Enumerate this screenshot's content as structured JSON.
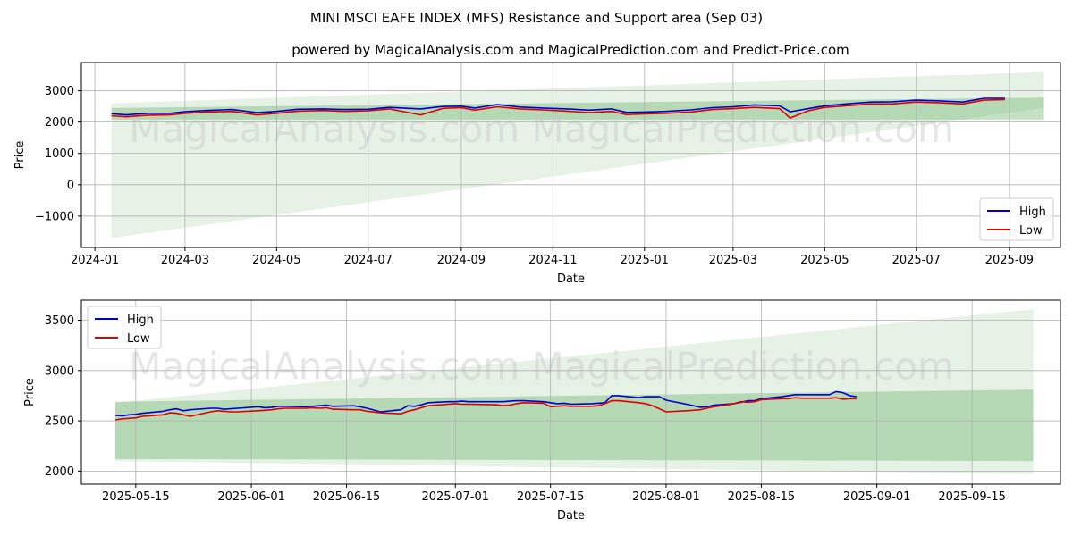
{
  "title": "MINI MSCI EAFE INDEX (MFS) Resistance and Support area (Sep 03)",
  "subtitle": "powered by MagicalAnalysis.com and MagicalPrediction.com and Predict-Price.com",
  "watermark": "MagicalAnalysis.com    MagicalPrediction.com",
  "colors": {
    "high": "#0000cc",
    "low": "#dd0000",
    "band": "#5aaa5a",
    "grid": "#b0b0b0"
  },
  "chart_data": [
    {
      "type": "line",
      "xlabel": "Date",
      "ylabel": "Price",
      "xlim": [
        "2023-12-23",
        "2025-10-05"
      ],
      "ylim": [
        -2000,
        3900
      ],
      "x_ticks": [
        "2024-01-01",
        "2024-03-01",
        "2024-05-01",
        "2024-07-01",
        "2024-09-01",
        "2024-11-01",
        "2025-01-01",
        "2025-03-01",
        "2025-05-01",
        "2025-07-01",
        "2025-09-01"
      ],
      "x_tick_labels": [
        "2024-01",
        "2024-03",
        "2024-05",
        "2024-07",
        "2024-09",
        "2024-11",
        "2025-01",
        "2025-03",
        "2025-05",
        "2025-07",
        "2025-09"
      ],
      "y_ticks": [
        -1000,
        0,
        1000,
        2000,
        3000
      ],
      "y_tick_labels": [
        "−1000",
        "0",
        "1000",
        "2000",
        "3000"
      ],
      "legend": {
        "position": "lower-right",
        "entries": [
          "High",
          "Low"
        ]
      },
      "grid": true,
      "bands": [
        {
          "x": [
            "2024-01-12",
            "2025-09-24"
          ],
          "upper": [
            2600,
            3600
          ],
          "lower": [
            -1700,
            2450
          ],
          "opacity": 0.15
        },
        {
          "x": [
            "2024-01-12",
            "2025-09-24"
          ],
          "upper": [
            2450,
            2780
          ],
          "lower": [
            2080,
            2080
          ],
          "opacity": 0.35
        }
      ],
      "series": [
        {
          "name": "High",
          "x": [
            "2024-01-12",
            "2024-01-22",
            "2024-02-05",
            "2024-02-20",
            "2024-03-01",
            "2024-03-15",
            "2024-04-01",
            "2024-04-18",
            "2024-05-01",
            "2024-05-15",
            "2024-06-01",
            "2024-06-15",
            "2024-07-01",
            "2024-07-15",
            "2024-08-05",
            "2024-08-20",
            "2024-09-01",
            "2024-09-10",
            "2024-09-25",
            "2024-10-10",
            "2024-10-25",
            "2024-11-10",
            "2024-11-25",
            "2024-12-10",
            "2024-12-20",
            "2025-01-01",
            "2025-01-15",
            "2025-02-01",
            "2025-02-15",
            "2025-03-01",
            "2025-03-15",
            "2025-04-01",
            "2025-04-08",
            "2025-04-20",
            "2025-05-01",
            "2025-05-15",
            "2025-06-01",
            "2025-06-15",
            "2025-07-01",
            "2025-07-15",
            "2025-08-01",
            "2025-08-15",
            "2025-08-29"
          ],
          "values": [
            2270,
            2230,
            2280,
            2280,
            2330,
            2370,
            2400,
            2300,
            2340,
            2410,
            2420,
            2400,
            2410,
            2470,
            2420,
            2500,
            2510,
            2450,
            2560,
            2480,
            2450,
            2420,
            2380,
            2420,
            2310,
            2320,
            2340,
            2390,
            2460,
            2490,
            2550,
            2520,
            2330,
            2430,
            2520,
            2580,
            2640,
            2650,
            2700,
            2680,
            2640,
            2760,
            2760
          ]
        },
        {
          "name": "Low",
          "x": [
            "2024-01-12",
            "2024-01-22",
            "2024-02-05",
            "2024-02-20",
            "2024-03-01",
            "2024-03-15",
            "2024-04-01",
            "2024-04-18",
            "2024-05-01",
            "2024-05-15",
            "2024-06-01",
            "2024-06-15",
            "2024-07-01",
            "2024-07-15",
            "2024-08-05",
            "2024-08-20",
            "2024-09-01",
            "2024-09-10",
            "2024-09-25",
            "2024-10-10",
            "2024-10-25",
            "2024-11-10",
            "2024-11-25",
            "2024-12-10",
            "2024-12-20",
            "2025-01-01",
            "2025-01-15",
            "2025-02-01",
            "2025-02-15",
            "2025-03-01",
            "2025-03-15",
            "2025-04-01",
            "2025-04-08",
            "2025-04-20",
            "2025-05-01",
            "2025-05-15",
            "2025-06-01",
            "2025-06-15",
            "2025-07-01",
            "2025-07-15",
            "2025-08-01",
            "2025-08-15",
            "2025-08-29"
          ],
          "values": [
            2200,
            2170,
            2220,
            2230,
            2280,
            2320,
            2340,
            2230,
            2280,
            2350,
            2370,
            2340,
            2360,
            2420,
            2230,
            2440,
            2460,
            2380,
            2490,
            2420,
            2390,
            2350,
            2300,
            2340,
            2240,
            2260,
            2280,
            2320,
            2400,
            2430,
            2470,
            2430,
            2130,
            2360,
            2470,
            2520,
            2580,
            2580,
            2640,
            2620,
            2580,
            2700,
            2720
          ]
        }
      ]
    },
    {
      "type": "line",
      "xlabel": "Date",
      "ylabel": "Price",
      "xlim": [
        "2025-05-07",
        "2025-09-28"
      ],
      "ylim": [
        1870,
        3700
      ],
      "x_ticks": [
        "2025-05-15",
        "2025-06-01",
        "2025-06-15",
        "2025-07-01",
        "2025-07-15",
        "2025-08-01",
        "2025-08-15",
        "2025-09-01",
        "2025-09-15"
      ],
      "x_tick_labels": [
        "2025-05-15",
        "2025-06-01",
        "2025-06-15",
        "2025-07-01",
        "2025-07-15",
        "2025-08-01",
        "2025-08-15",
        "2025-09-01",
        "2025-09-15"
      ],
      "y_ticks": [
        2000,
        2500,
        3000,
        3500
      ],
      "y_tick_labels": [
        "2000",
        "2500",
        "3000",
        "3500"
      ],
      "legend": {
        "position": "upper-left",
        "entries": [
          "High",
          "Low"
        ]
      },
      "grid": true,
      "bands": [
        {
          "x": [
            "2025-05-12",
            "2025-09-24"
          ],
          "upper": [
            2680,
            3610
          ],
          "lower": [
            2100,
            1970
          ],
          "opacity": 0.15
        },
        {
          "x": [
            "2025-05-12",
            "2025-09-24"
          ],
          "upper": [
            2690,
            2810
          ],
          "lower": [
            2120,
            2100
          ],
          "opacity": 0.35
        }
      ],
      "series": [
        {
          "name": "High",
          "x": [
            "2025-05-12",
            "2025-05-13",
            "2025-05-14",
            "2025-05-15",
            "2025-05-16",
            "2025-05-19",
            "2025-05-20",
            "2025-05-21",
            "2025-05-22",
            "2025-05-23",
            "2025-05-26",
            "2025-05-27",
            "2025-05-28",
            "2025-05-29",
            "2025-05-30",
            "2025-06-02",
            "2025-06-03",
            "2025-06-04",
            "2025-06-05",
            "2025-06-06",
            "2025-06-09",
            "2025-06-10",
            "2025-06-11",
            "2025-06-12",
            "2025-06-13",
            "2025-06-16",
            "2025-06-17",
            "2025-06-18",
            "2025-06-20",
            "2025-06-23",
            "2025-06-24",
            "2025-06-25",
            "2025-06-26",
            "2025-06-27",
            "2025-06-30",
            "2025-07-01",
            "2025-07-02",
            "2025-07-03",
            "2025-07-07",
            "2025-07-08",
            "2025-07-09",
            "2025-07-10",
            "2025-07-11",
            "2025-07-14",
            "2025-07-15",
            "2025-07-16",
            "2025-07-17",
            "2025-07-18",
            "2025-07-21",
            "2025-07-22",
            "2025-07-23",
            "2025-07-24",
            "2025-07-25",
            "2025-07-28",
            "2025-07-29",
            "2025-07-30",
            "2025-07-31",
            "2025-08-01",
            "2025-08-04",
            "2025-08-05",
            "2025-08-06",
            "2025-08-07",
            "2025-08-08",
            "2025-08-11",
            "2025-08-12",
            "2025-08-13",
            "2025-08-14",
            "2025-08-15",
            "2025-08-18",
            "2025-08-19",
            "2025-08-20",
            "2025-08-21",
            "2025-08-22",
            "2025-08-25",
            "2025-08-26",
            "2025-08-27",
            "2025-08-28",
            "2025-08-29"
          ],
          "values": [
            2555,
            2550,
            2560,
            2565,
            2575,
            2595,
            2610,
            2620,
            2600,
            2610,
            2625,
            2625,
            2615,
            2620,
            2625,
            2640,
            2630,
            2635,
            2645,
            2645,
            2640,
            2645,
            2650,
            2655,
            2645,
            2650,
            2640,
            2625,
            2590,
            2610,
            2650,
            2645,
            2660,
            2680,
            2690,
            2690,
            2695,
            2690,
            2690,
            2690,
            2695,
            2700,
            2700,
            2690,
            2680,
            2670,
            2675,
            2665,
            2670,
            2675,
            2680,
            2750,
            2750,
            2730,
            2740,
            2740,
            2740,
            2705,
            2665,
            2650,
            2635,
            2640,
            2655,
            2670,
            2685,
            2700,
            2700,
            2720,
            2740,
            2750,
            2760,
            2760,
            2760,
            2760,
            2790,
            2780,
            2750,
            2740
          ]
        },
        {
          "name": "Low",
          "x": [
            "2025-05-12",
            "2025-05-13",
            "2025-05-14",
            "2025-05-15",
            "2025-05-16",
            "2025-05-19",
            "2025-05-20",
            "2025-05-21",
            "2025-05-22",
            "2025-05-23",
            "2025-05-26",
            "2025-05-27",
            "2025-05-28",
            "2025-05-29",
            "2025-05-30",
            "2025-06-02",
            "2025-06-03",
            "2025-06-04",
            "2025-06-05",
            "2025-06-06",
            "2025-06-09",
            "2025-06-10",
            "2025-06-11",
            "2025-06-12",
            "2025-06-13",
            "2025-06-16",
            "2025-06-17",
            "2025-06-18",
            "2025-06-20",
            "2025-06-23",
            "2025-06-24",
            "2025-06-25",
            "2025-06-26",
            "2025-06-27",
            "2025-06-30",
            "2025-07-01",
            "2025-07-02",
            "2025-07-03",
            "2025-07-07",
            "2025-07-08",
            "2025-07-09",
            "2025-07-10",
            "2025-07-11",
            "2025-07-14",
            "2025-07-15",
            "2025-07-16",
            "2025-07-17",
            "2025-07-18",
            "2025-07-21",
            "2025-07-22",
            "2025-07-23",
            "2025-07-24",
            "2025-07-25",
            "2025-07-28",
            "2025-07-29",
            "2025-07-30",
            "2025-07-31",
            "2025-08-01",
            "2025-08-04",
            "2025-08-05",
            "2025-08-06",
            "2025-08-07",
            "2025-08-08",
            "2025-08-11",
            "2025-08-12",
            "2025-08-13",
            "2025-08-14",
            "2025-08-15",
            "2025-08-18",
            "2025-08-19",
            "2025-08-20",
            "2025-08-21",
            "2025-08-22",
            "2025-08-25",
            "2025-08-26",
            "2025-08-27",
            "2025-08-28",
            "2025-08-29"
          ],
          "values": [
            2510,
            2520,
            2525,
            2530,
            2545,
            2560,
            2580,
            2575,
            2560,
            2545,
            2590,
            2600,
            2595,
            2590,
            2590,
            2600,
            2605,
            2610,
            2620,
            2625,
            2625,
            2630,
            2625,
            2630,
            2615,
            2610,
            2610,
            2595,
            2580,
            2570,
            2595,
            2610,
            2630,
            2650,
            2665,
            2670,
            2665,
            2665,
            2660,
            2650,
            2655,
            2670,
            2680,
            2675,
            2640,
            2645,
            2650,
            2645,
            2645,
            2650,
            2670,
            2700,
            2700,
            2680,
            2670,
            2650,
            2620,
            2590,
            2600,
            2605,
            2610,
            2625,
            2640,
            2670,
            2690,
            2685,
            2690,
            2710,
            2720,
            2720,
            2730,
            2725,
            2725,
            2725,
            2730,
            2715,
            2720,
            2720
          ]
        }
      ]
    }
  ]
}
